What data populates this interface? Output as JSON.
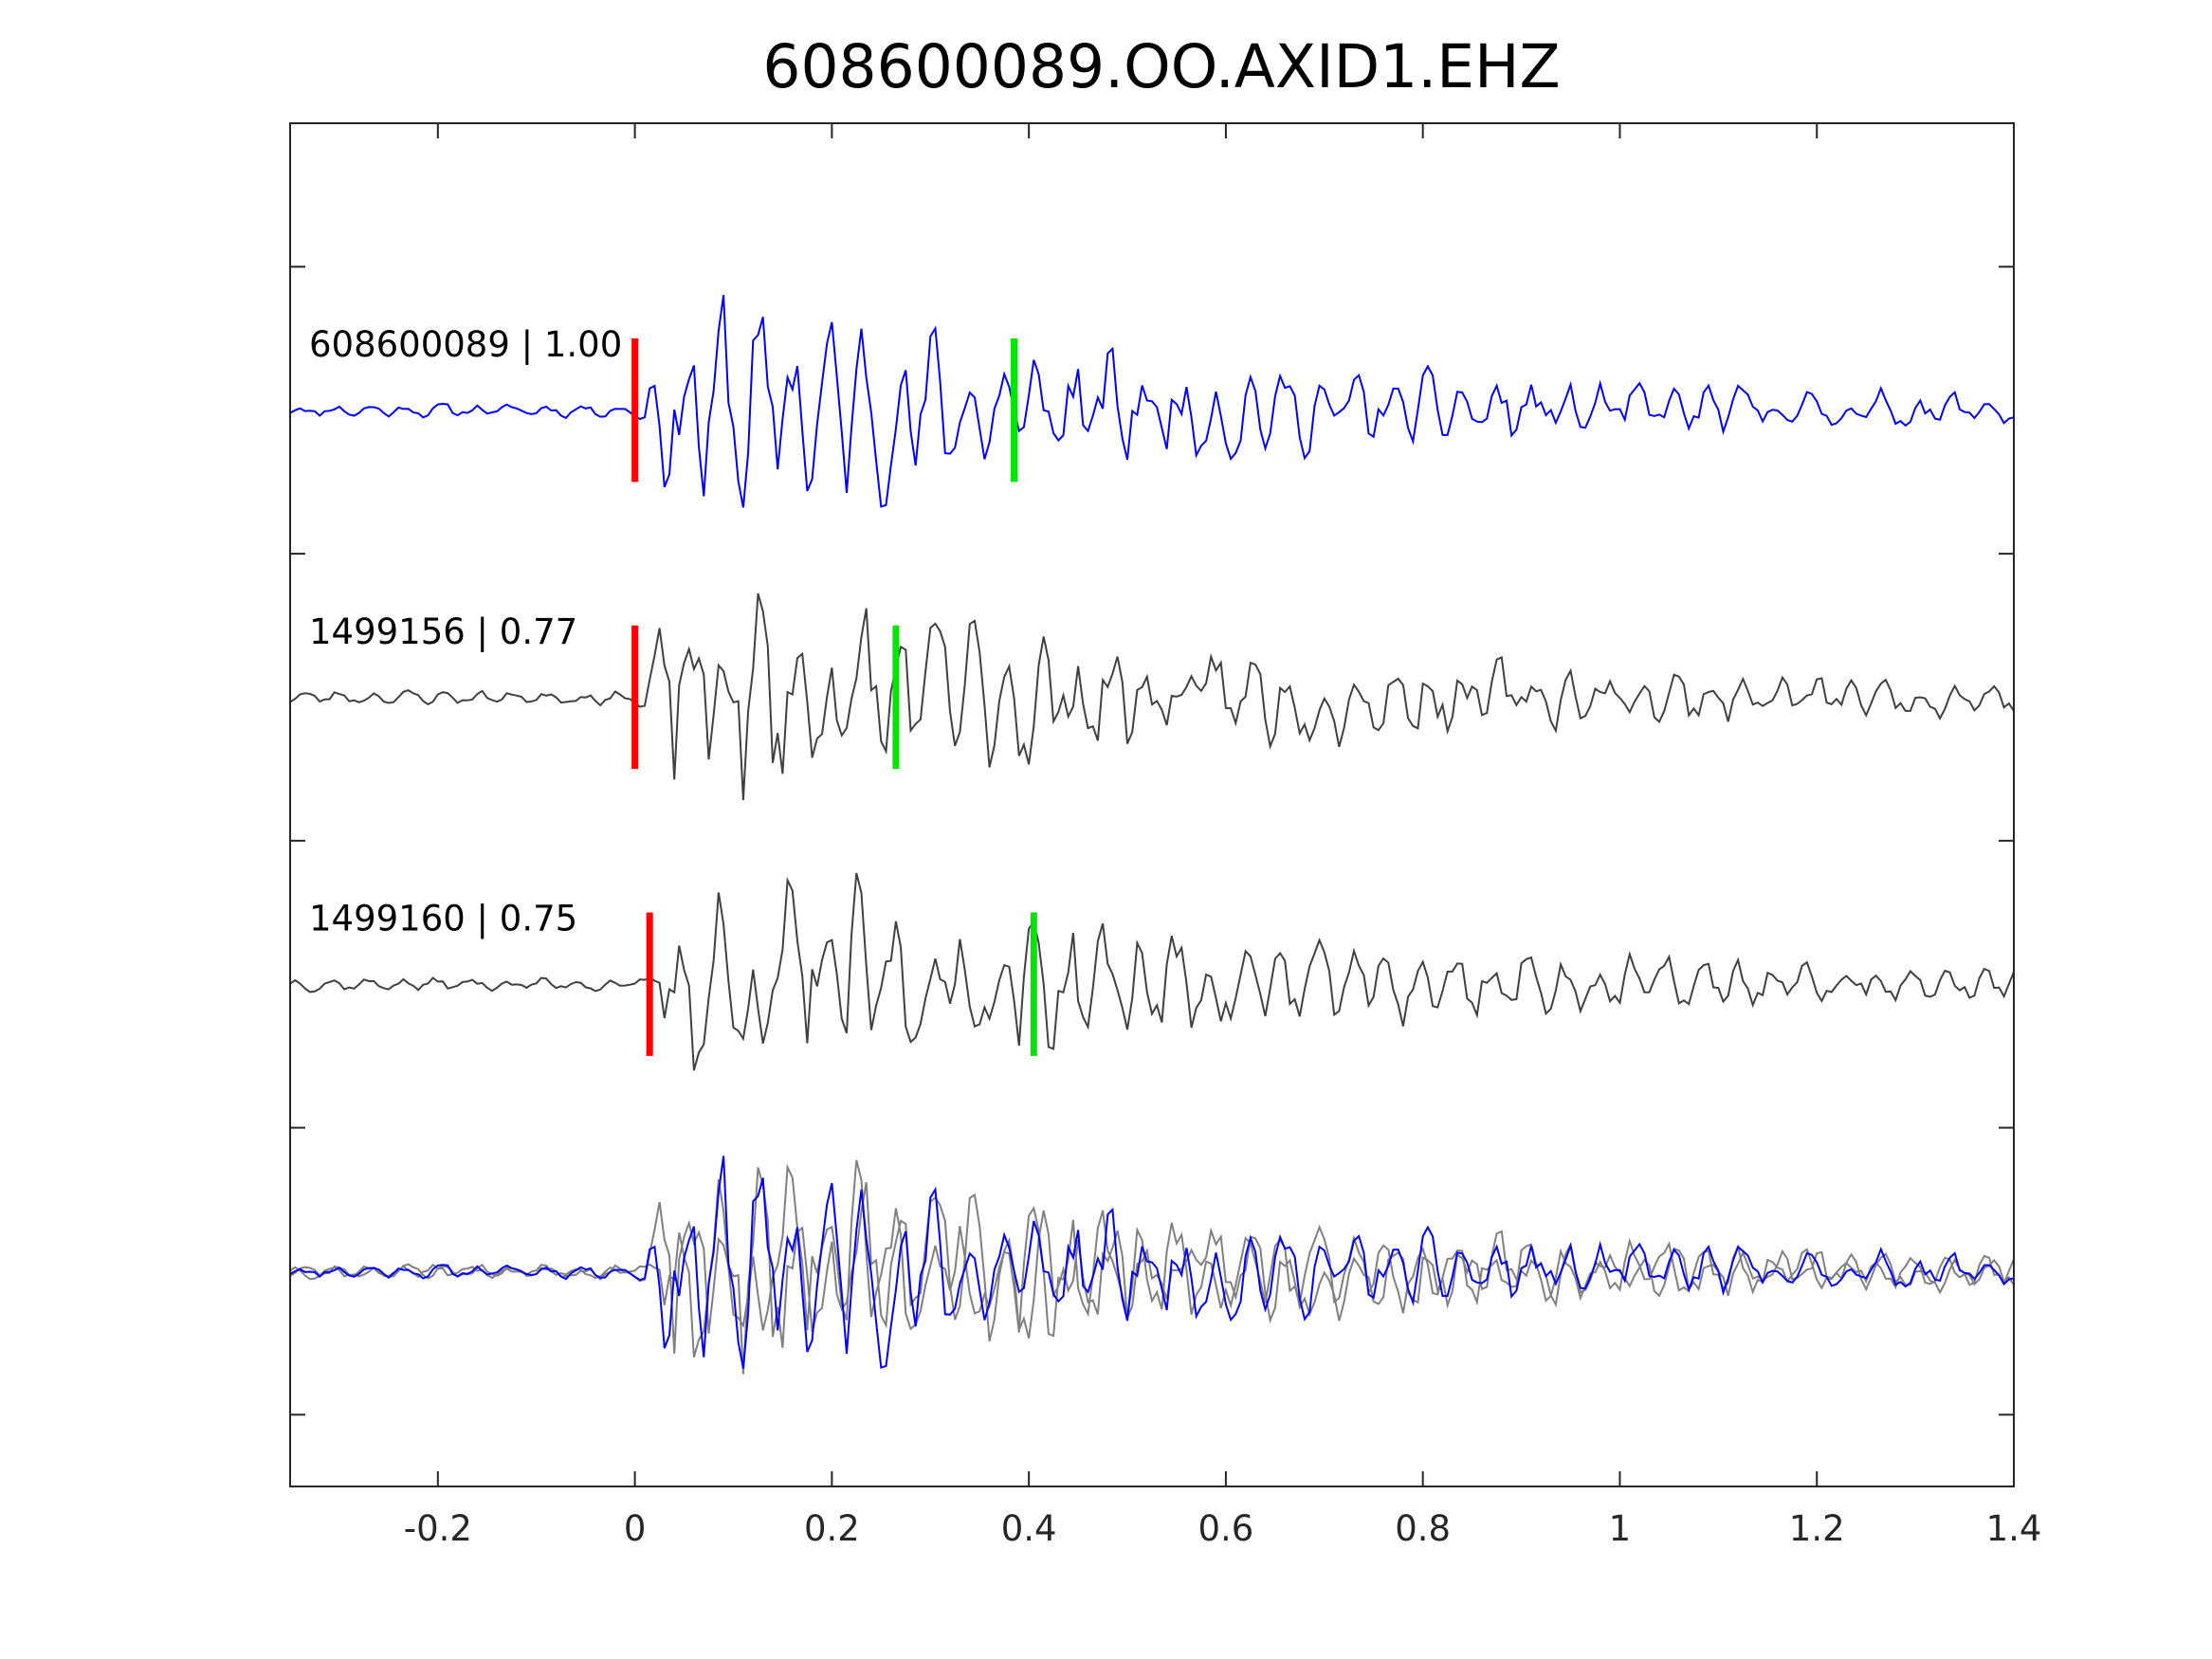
{
  "chart_data": {
    "type": "line",
    "title": "608600089.OO.AXID1.EHZ",
    "xlabel": "",
    "ylabel": "",
    "xlim": [
      -0.35,
      1.4
    ],
    "ylim": [
      0,
      9.5
    ],
    "x_ticks": [
      -0.2,
      0,
      0.2,
      0.4,
      0.6,
      0.8,
      1,
      1.2,
      1.4
    ],
    "x_tick_labels": [
      "-0.2",
      "0",
      "0.2",
      "0.4",
      "0.6",
      "0.8",
      "1",
      "1.2",
      "1.4"
    ],
    "y_ticks": [
      0.5,
      2.5,
      4.5,
      6.5,
      8.5
    ],
    "grid": false,
    "series": [
      {
        "label": "608600089 | 1.00",
        "offset": 7.5,
        "color": "#0000ff",
        "p_pick": 0.0,
        "s_pick": 0.385,
        "seed": 11,
        "amp_scale": 1.0
      },
      {
        "label": "1499156 | 0.77",
        "offset": 5.5,
        "color": "#404040",
        "p_pick": 0.0,
        "s_pick": 0.265,
        "seed": 23,
        "amp_scale": 1.05
      },
      {
        "label": "1499160 | 0.75",
        "offset": 3.5,
        "color": "#404040",
        "p_pick": 0.015,
        "s_pick": 0.405,
        "seed": 37,
        "amp_scale": 1.0
      }
    ],
    "overlay_offset": 1.5,
    "overlay_colors": {
      "reference": "#0000ff",
      "others": "#808080"
    },
    "pick_colors": {
      "p": "#ff0000",
      "s": "#00e600"
    }
  }
}
